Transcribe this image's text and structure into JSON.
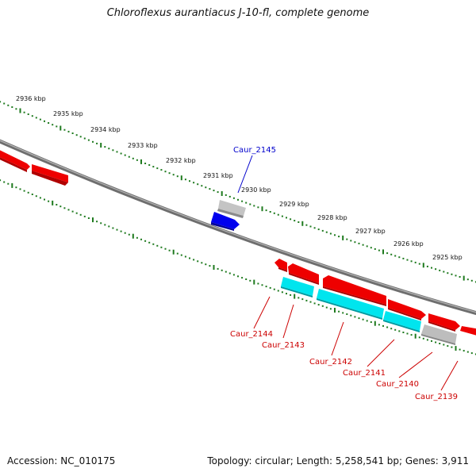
{
  "title": "Chloroflexus aurantiacus J-10-fl, complete genome",
  "footer": {
    "accession": "Accession: NC_010175",
    "stats": "Topology: circular; Length: 5,258,541 bp; Genes: 3,911"
  },
  "scale_labels": [
    "2936 kbp",
    "2935 kbp",
    "2934 kbp",
    "2933 kbp",
    "2932 kbp",
    "2931 kbp",
    "2930 kbp",
    "2929 kbp",
    "2928 kbp",
    "2927 kbp",
    "2926 kbp",
    "2925 kbp"
  ],
  "gene_labels": [
    {
      "text": "Caur_2145",
      "strand": "forward",
      "color": "#0000cc"
    },
    {
      "text": "Caur_2144",
      "strand": "reverse",
      "color": "#cc0000"
    },
    {
      "text": "Caur_2143",
      "strand": "reverse",
      "color": "#cc0000"
    },
    {
      "text": "Caur_2142",
      "strand": "reverse",
      "color": "#cc0000"
    },
    {
      "text": "Caur_2141",
      "strand": "reverse",
      "color": "#cc0000"
    },
    {
      "text": "Caur_2140",
      "strand": "reverse",
      "color": "#cc0000"
    },
    {
      "text": "Caur_2139",
      "strand": "reverse",
      "color": "#cc0000"
    }
  ],
  "colors": {
    "backbone": "#7a7a7a",
    "ticks": "#1e7a1e",
    "cds_red": "#ee0000",
    "cds_blue": "#0000ee",
    "cds_cyan": "#00e5ee",
    "cds_gray": "#b0b0b0"
  }
}
